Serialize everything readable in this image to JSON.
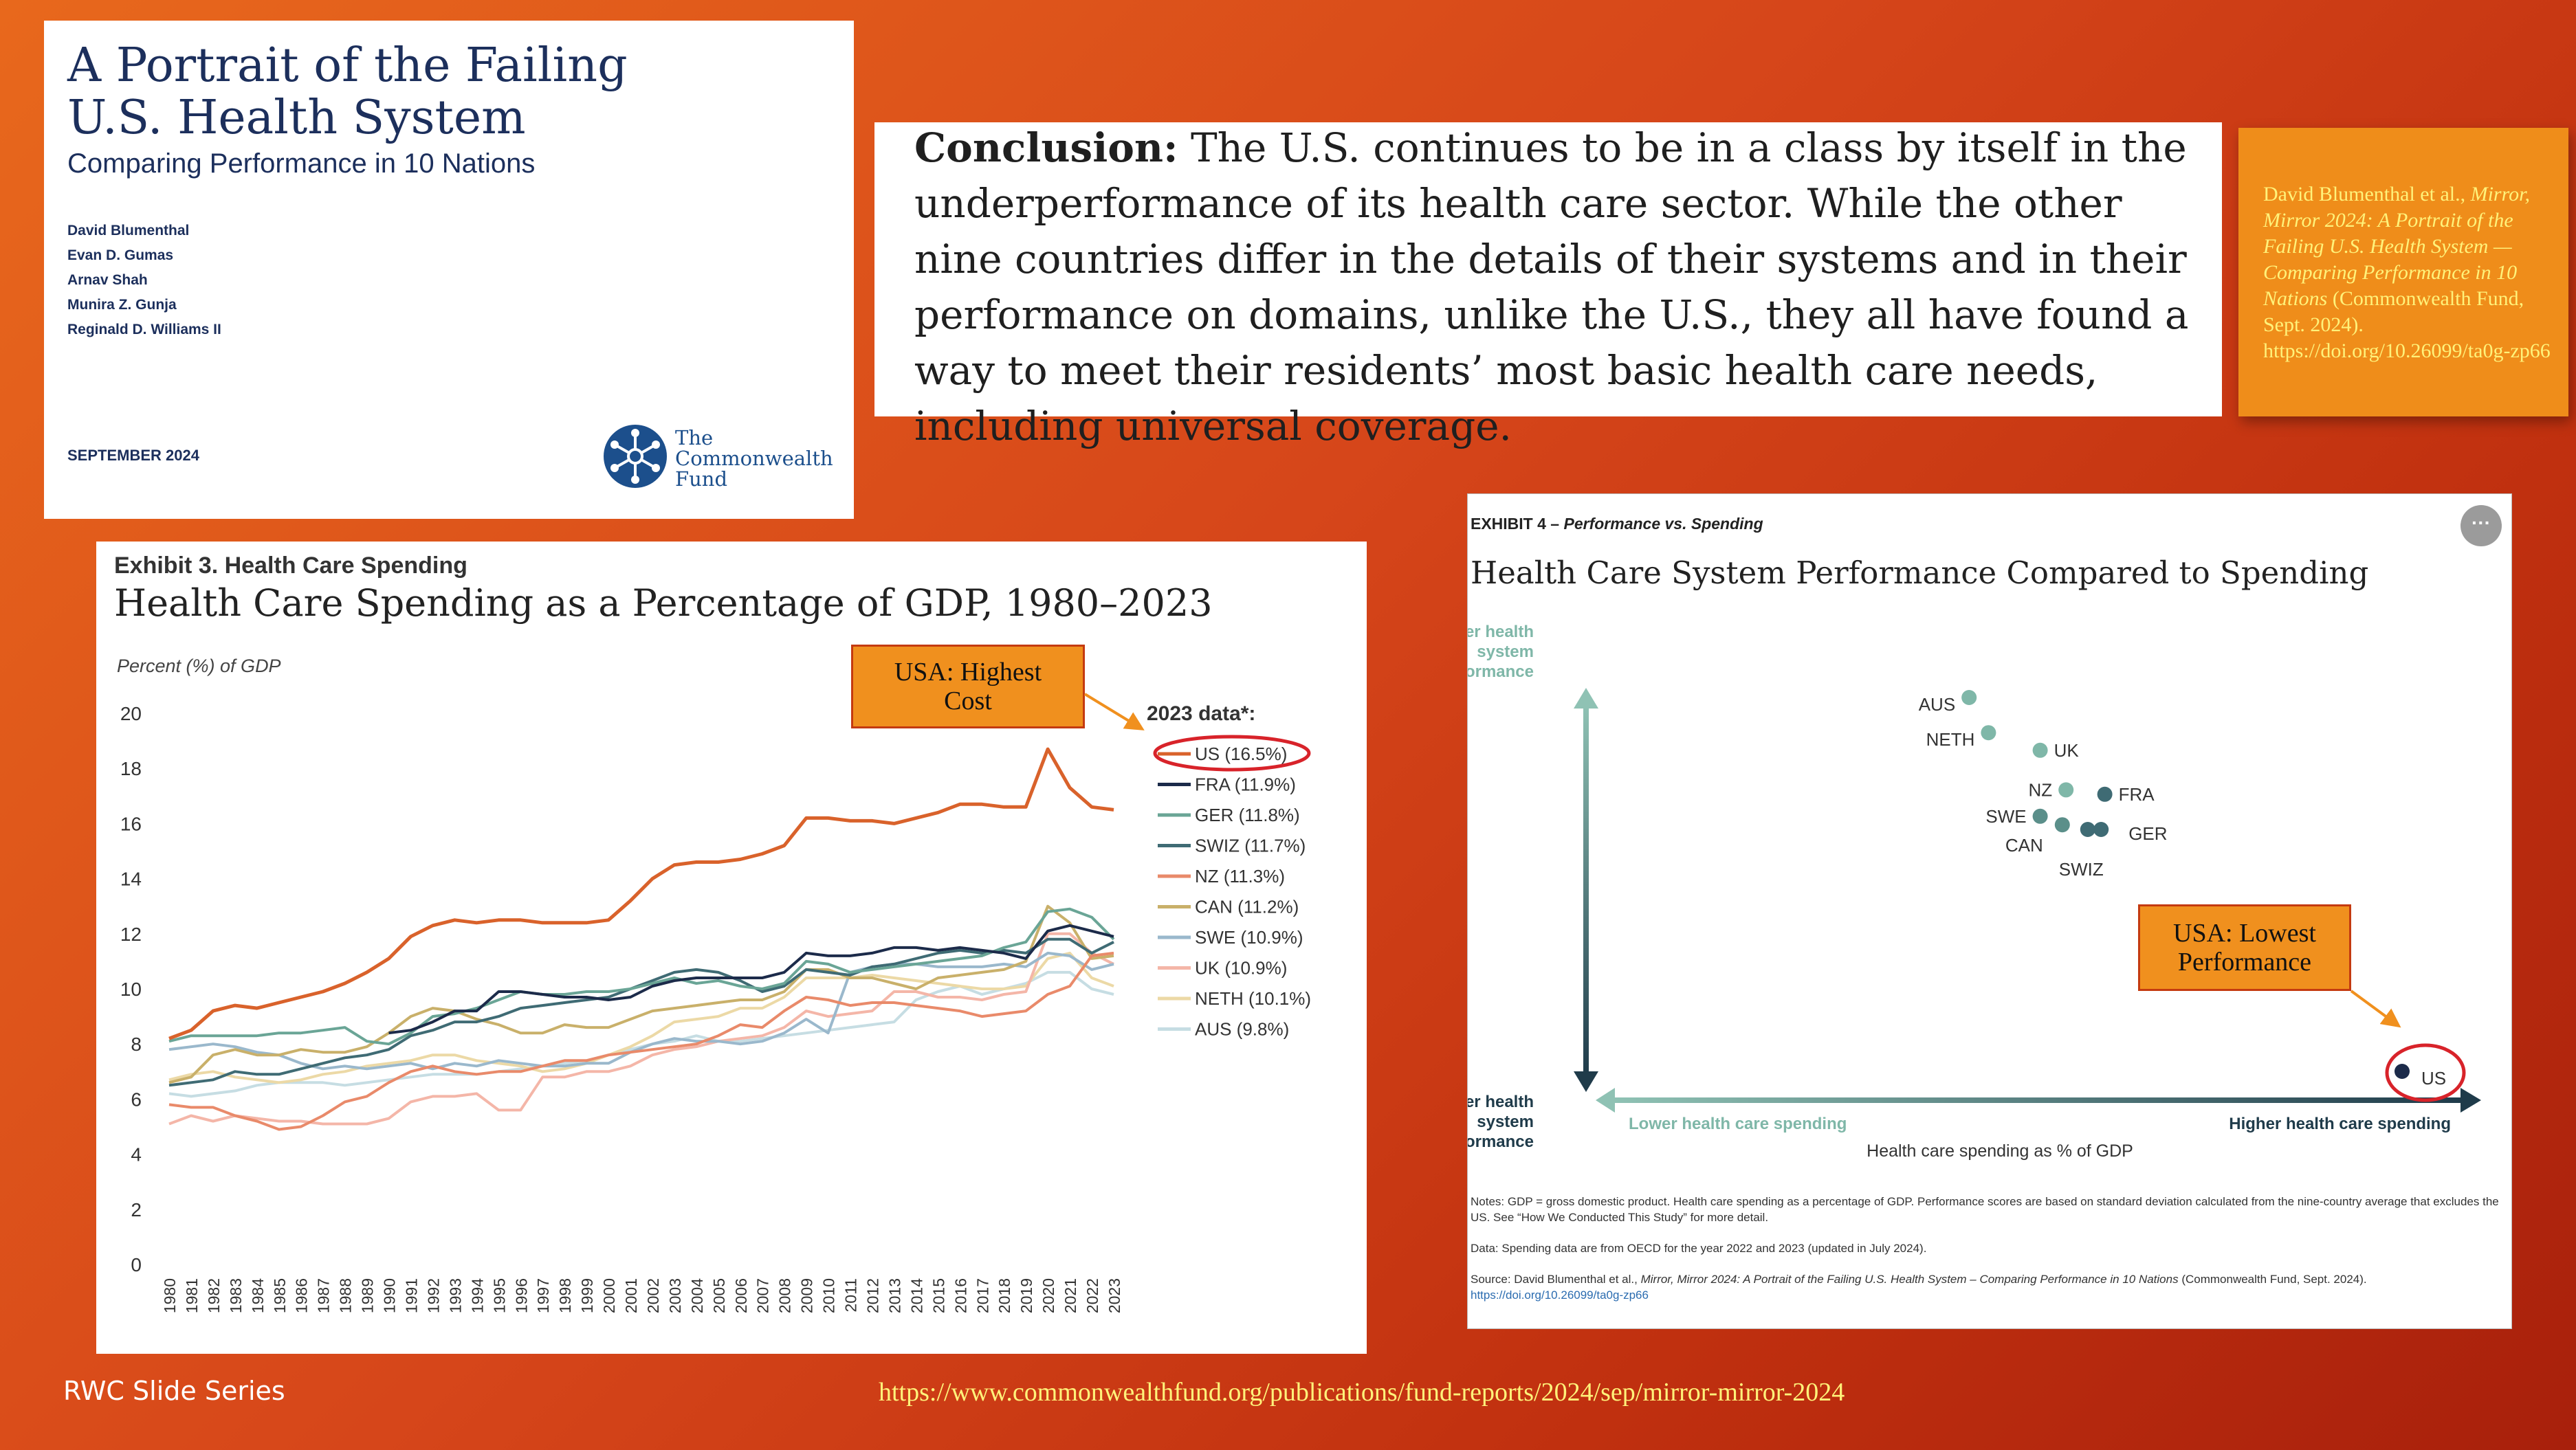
{
  "cover": {
    "title": "A Portrait of the Failing\nU.S. Health System",
    "subtitle": "Comparing Performance in 10 Nations",
    "authors": [
      "David Blumenthal",
      "Evan D. Gumas",
      "Arnav Shah",
      "Munira Z. Gunja",
      "Reginald D. Williams II"
    ],
    "date": "SEPTEMBER 2024",
    "logo_text": "The\nCommonwealth\nFund",
    "logo_color": "#1c4f8c"
  },
  "conclusion": {
    "lead": "Conclusion:",
    "text": "The U.S. continues to be in a class by itself in the underperformance of its health care sector. While the other nine countries differ in the details of their systems and in their performance on domains, unlike the U.S., they all have found a way to meet their residents’ most basic health care needs, including universal coverage."
  },
  "citation": {
    "authors": "David Blumenthal et al.,",
    "work": "Mirror, Mirror 2024: A Portrait of the Failing U.S. Health System — Comparing Performance in 10 Nations",
    "pub": "(Commonwealth Fund, Sept. 2024).",
    "doi": "https://doi.org/10.26099/ta0g-zp66"
  },
  "footer": {
    "series": "RWC Slide Series",
    "url": "https://www.commonwealthfund.org/publications/fund-reports/2024/sep/mirror-mirror-2024"
  },
  "chart_data": [
    {
      "type": "line",
      "exhibit_label": "Exhibit 3. Health Care Spending",
      "title": "Health Care Spending as a Percentage of GDP, 1980–2023",
      "ylabel": "Percent (%) of GDP",
      "xlabel": "",
      "ylim": [
        0,
        20
      ],
      "yticks": [
        0,
        2,
        4,
        6,
        8,
        10,
        12,
        14,
        16,
        18,
        20
      ],
      "x": [
        1980,
        1981,
        1982,
        1983,
        1984,
        1985,
        1986,
        1987,
        1988,
        1989,
        1990,
        1991,
        1992,
        1993,
        1994,
        1995,
        1996,
        1997,
        1998,
        1999,
        2000,
        2001,
        2002,
        2003,
        2004,
        2005,
        2006,
        2007,
        2008,
        2009,
        2010,
        2011,
        2012,
        2013,
        2014,
        2015,
        2016,
        2017,
        2018,
        2019,
        2020,
        2021,
        2022,
        2023
      ],
      "legend_title": "2023 data*:",
      "legend_position": "right",
      "annotation": "USA: Highest\nCost",
      "series": [
        {
          "name": "US (16.5%)",
          "color": "#d9622b",
          "highlight": true,
          "values": [
            8.2,
            8.5,
            9.2,
            9.4,
            9.3,
            9.5,
            9.7,
            9.9,
            10.2,
            10.6,
            11.1,
            11.9,
            12.3,
            12.5,
            12.4,
            12.5,
            12.5,
            12.4,
            12.4,
            12.4,
            12.5,
            13.2,
            14.0,
            14.5,
            14.6,
            14.6,
            14.7,
            14.9,
            15.2,
            16.2,
            16.2,
            16.1,
            16.1,
            16.0,
            16.2,
            16.4,
            16.7,
            16.7,
            16.6,
            16.6,
            18.7,
            17.3,
            16.6,
            16.5
          ]
        },
        {
          "name": "FRA (11.9%)",
          "color": "#1c2b4a",
          "values": [
            null,
            null,
            null,
            null,
            null,
            null,
            null,
            null,
            null,
            null,
            8.4,
            8.5,
            8.8,
            9.2,
            9.2,
            9.9,
            9.9,
            9.8,
            9.7,
            9.7,
            9.6,
            9.7,
            10.1,
            10.3,
            10.4,
            10.4,
            10.4,
            10.4,
            10.6,
            11.3,
            11.2,
            11.2,
            11.3,
            11.5,
            11.5,
            11.4,
            11.5,
            11.4,
            11.3,
            11.1,
            12.1,
            12.3,
            12.1,
            11.9
          ]
        },
        {
          "name": "GER (11.8%)",
          "color": "#6aa596",
          "values": [
            8.1,
            8.3,
            8.3,
            8.3,
            8.3,
            8.4,
            8.4,
            8.5,
            8.6,
            8.1,
            8.0,
            8.4,
            9.0,
            9.1,
            9.3,
            9.6,
            9.9,
            9.8,
            9.8,
            9.9,
            9.9,
            10.0,
            10.2,
            10.4,
            10.2,
            10.3,
            10.1,
            10.0,
            10.2,
            11.0,
            10.9,
            10.6,
            10.7,
            10.8,
            10.9,
            11.0,
            11.1,
            11.2,
            11.5,
            11.7,
            12.8,
            12.9,
            12.6,
            11.8
          ]
        },
        {
          "name": "SWIZ (11.7%)",
          "color": "#3f6b74",
          "values": [
            6.5,
            6.6,
            6.7,
            7.0,
            6.9,
            6.9,
            7.1,
            7.3,
            7.5,
            7.6,
            7.8,
            8.3,
            8.5,
            8.8,
            8.8,
            9.0,
            9.3,
            9.4,
            9.5,
            9.6,
            9.7,
            10.0,
            10.3,
            10.6,
            10.7,
            10.6,
            10.3,
            9.9,
            10.1,
            10.7,
            10.6,
            10.5,
            10.8,
            10.9,
            11.1,
            11.3,
            11.4,
            11.3,
            11.4,
            11.3,
            11.8,
            11.8,
            11.3,
            11.7
          ]
        },
        {
          "name": "NZ (11.3%)",
          "color": "#e98a6a",
          "values": [
            5.8,
            5.7,
            5.7,
            5.4,
            5.2,
            4.9,
            5.0,
            5.4,
            5.9,
            6.1,
            6.6,
            7.0,
            7.2,
            7.0,
            6.9,
            7.0,
            7.0,
            7.2,
            7.4,
            7.4,
            7.6,
            7.7,
            7.8,
            7.9,
            8.0,
            8.3,
            8.7,
            8.6,
            9.2,
            9.7,
            9.6,
            9.4,
            9.5,
            9.5,
            9.4,
            9.3,
            9.2,
            9.0,
            9.1,
            9.2,
            9.8,
            10.1,
            11.2,
            11.3
          ]
        },
        {
          "name": "CAN (11.2%)",
          "color": "#c9b06a",
          "values": [
            6.6,
            6.8,
            7.6,
            7.8,
            7.6,
            7.6,
            7.8,
            7.7,
            7.7,
            7.9,
            8.4,
            9.0,
            9.3,
            9.2,
            8.9,
            8.7,
            8.4,
            8.4,
            8.7,
            8.6,
            8.6,
            8.9,
            9.2,
            9.3,
            9.4,
            9.5,
            9.6,
            9.6,
            9.9,
            10.7,
            10.7,
            10.4,
            10.4,
            10.2,
            10.0,
            10.4,
            10.5,
            10.6,
            10.7,
            11.0,
            13.0,
            12.4,
            11.1,
            11.2
          ]
        },
        {
          "name": "SWE (10.9%)",
          "color": "#9ab8cc",
          "values": [
            7.8,
            7.9,
            8.0,
            7.9,
            7.7,
            7.6,
            7.3,
            7.1,
            7.2,
            7.1,
            7.2,
            7.3,
            7.1,
            7.3,
            7.2,
            7.4,
            7.3,
            7.2,
            7.2,
            7.3,
            7.3,
            7.7,
            8.0,
            8.2,
            8.1,
            8.1,
            8.0,
            8.1,
            8.4,
            8.9,
            8.4,
            10.6,
            10.8,
            10.9,
            10.9,
            10.8,
            10.8,
            10.8,
            10.9,
            10.8,
            11.3,
            11.2,
            10.7,
            10.9
          ]
        },
        {
          "name": "UK (10.9%)",
          "color": "#f4b6a8",
          "values": [
            5.1,
            5.4,
            5.2,
            5.4,
            5.3,
            5.2,
            5.2,
            5.1,
            5.1,
            5.1,
            5.3,
            5.9,
            6.1,
            6.1,
            6.2,
            5.6,
            5.6,
            6.8,
            6.8,
            7.0,
            7.0,
            7.2,
            7.6,
            7.8,
            7.9,
            8.1,
            8.2,
            8.3,
            8.6,
            9.2,
            9.0,
            9.1,
            9.2,
            9.9,
            9.9,
            9.7,
            9.7,
            9.6,
            9.8,
            9.9,
            12.0,
            12.0,
            11.3,
            10.9
          ]
        },
        {
          "name": "NETH (10.1%)",
          "color": "#ecd9a6",
          "values": [
            6.7,
            6.9,
            7.0,
            6.8,
            6.7,
            6.6,
            6.7,
            6.9,
            7.0,
            7.2,
            7.3,
            7.4,
            7.6,
            7.6,
            7.4,
            7.3,
            7.2,
            7.0,
            7.1,
            7.3,
            7.6,
            7.9,
            8.3,
            8.8,
            8.9,
            9.0,
            9.3,
            9.3,
            9.7,
            10.4,
            10.4,
            10.4,
            10.5,
            10.4,
            10.3,
            10.2,
            10.1,
            10.0,
            10.0,
            10.1,
            11.1,
            11.3,
            10.4,
            10.1
          ]
        },
        {
          "name": "AUS (9.8%)",
          "color": "#c6dde3",
          "values": [
            6.2,
            6.1,
            6.2,
            6.3,
            6.5,
            6.6,
            6.6,
            6.6,
            6.5,
            6.6,
            6.7,
            6.8,
            6.9,
            6.9,
            6.9,
            7.0,
            7.1,
            7.2,
            7.3,
            7.4,
            7.6,
            7.8,
            8.0,
            8.1,
            8.3,
            8.1,
            8.1,
            8.2,
            8.3,
            8.4,
            8.5,
            8.6,
            8.7,
            8.8,
            9.6,
            9.9,
            10.1,
            9.8,
            10.0,
            10.2,
            10.6,
            10.6,
            10.0,
            9.8
          ]
        }
      ]
    },
    {
      "type": "scatter",
      "exhibit_label": "EXHIBIT 4 –",
      "exhibit_label_italic": "Performance vs. Spending",
      "title": "Health Care System Performance Compared to Spending",
      "y_axis_top": "Higher health\nsystem\nperformance",
      "y_axis_bottom": "Lower health\nsystem\nperformance",
      "x_axis_left": "Lower health care spending",
      "x_axis_right": "Higher health care spending",
      "xlabel": "Health care spending as % of GDP",
      "ylabel": "",
      "annotation": "USA: Lowest\nPerformance",
      "grid": false,
      "points": [
        {
          "label": "AUS",
          "spending": 9.8,
          "performance": 0.9,
          "color": "#7fb7a8"
        },
        {
          "label": "NETH",
          "spending": 10.1,
          "performance": 0.82,
          "color": "#7fb7a8"
        },
        {
          "label": "UK",
          "spending": 10.9,
          "performance": 0.78,
          "color": "#7fb7a8"
        },
        {
          "label": "NZ",
          "spending": 11.3,
          "performance": 0.69,
          "color": "#7fb7a8"
        },
        {
          "label": "FRA",
          "spending": 11.9,
          "performance": 0.68,
          "color": "#3f6b74"
        },
        {
          "label": "SWE",
          "spending": 10.9,
          "performance": 0.63,
          "color": "#5b8f8a"
        },
        {
          "label": "CAN",
          "spending": 11.2,
          "performance": 0.62,
          "color": "#5b8f8a"
        },
        {
          "label": "GER",
          "spending": 11.8,
          "performance": 0.6,
          "color": "#3f6b74"
        },
        {
          "label": "SWIZ",
          "spending": 11.7,
          "performance": 0.6,
          "color": "#3f6b74"
        },
        {
          "label": "US",
          "spending": 16.5,
          "performance": 0.05,
          "color": "#1c2b4a",
          "highlight": true
        }
      ],
      "notes": "Notes: GDP = gross domestic product. Health care spending as a percentage of GDP. Performance scores are based on standard deviation calculated from the nine-country average that excludes the US. See “How We Conducted This Study” for more detail.",
      "data_note": "Data: Spending data are from OECD for the year 2022 and 2023 (updated in July 2024).",
      "source_prefix": "Source: David Blumenthal et al.,",
      "source_title": "Mirror, Mirror 2024: A Portrait of the Failing U.S. Health System – Comparing Performance in 10 Nations",
      "source_suffix": "(Commonwealth Fund, Sept. 2024).",
      "source_link": "https://doi.org/10.26099/ta0g-zp66"
    }
  ]
}
